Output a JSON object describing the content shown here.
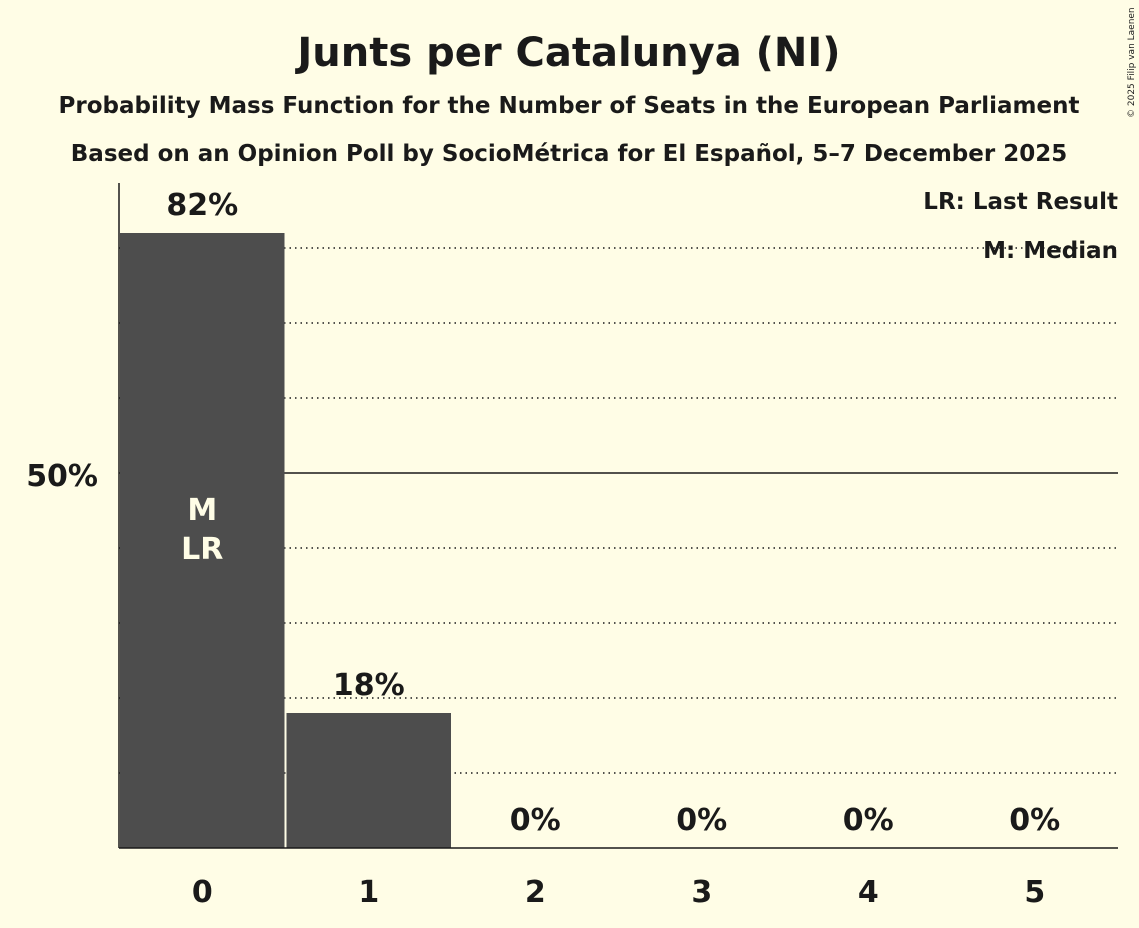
{
  "chart_data": {
    "type": "bar",
    "title": "Junts per Catalunya (NI)",
    "subtitle": "Probability Mass Function for the Number of Seats in the European Parliament",
    "subtitle2": "Based on an Opinion Poll by SocioMétrica for El Español, 5–7 December 2025",
    "categories": [
      "0",
      "1",
      "2",
      "3",
      "4",
      "5"
    ],
    "values": [
      82,
      18,
      0,
      0,
      0,
      0
    ],
    "value_labels": [
      "82%",
      "18%",
      "0%",
      "0%",
      "0%",
      "0%"
    ],
    "ylim": [
      0,
      88
    ],
    "ytick_label": "50%",
    "ytick_value": 50,
    "gridlines": [
      10,
      20,
      30,
      40,
      60,
      70,
      80
    ],
    "bar_markers": {
      "index": 0,
      "median": "M",
      "last_result": "LR"
    },
    "legend": [
      "LR: Last Result",
      "M: Median"
    ],
    "legend_placement": "top-right",
    "bar_color": "#4d4d4d",
    "background": "#fffde6",
    "copyright": "© 2025 Filip van Laenen"
  }
}
